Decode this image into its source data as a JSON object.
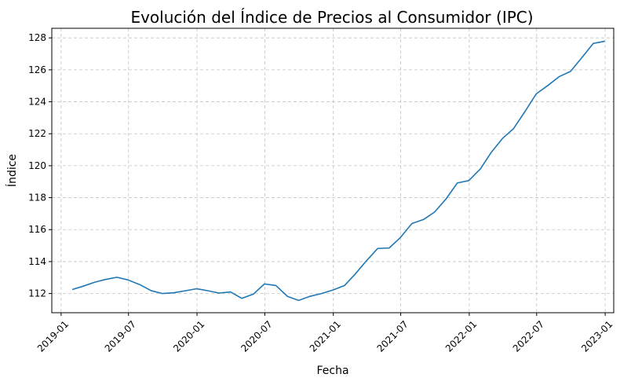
{
  "chart_data": {
    "type": "line",
    "title": "Evolución del Índice de Precios al Consumidor (IPC)",
    "xlabel": "Fecha",
    "ylabel": "Índice",
    "ylim": [
      110.8,
      128.6
    ],
    "yticks": [
      112,
      114,
      116,
      118,
      120,
      122,
      124,
      126,
      128
    ],
    "xlim": [
      "2018-12-07",
      "2023-01-24"
    ],
    "xticks": [
      "2019-01",
      "2019-07",
      "2020-01",
      "2020-07",
      "2021-01",
      "2021-07",
      "2022-01",
      "2022-07",
      "2023-01"
    ],
    "grid": true,
    "color": "#1f77b4",
    "series": [
      {
        "x": [
          "2019-01-31",
          "2019-02-28",
          "2019-03-31",
          "2019-04-30",
          "2019-05-31",
          "2019-06-30",
          "2019-07-31",
          "2019-08-31",
          "2019-09-30",
          "2019-10-31",
          "2019-11-30",
          "2019-12-31",
          "2020-01-31",
          "2020-02-29",
          "2020-03-31",
          "2020-04-30",
          "2020-05-31",
          "2020-06-30",
          "2020-07-31",
          "2020-08-31",
          "2020-09-30",
          "2020-10-31",
          "2020-11-30",
          "2020-12-31",
          "2021-01-31",
          "2021-02-28",
          "2021-03-31",
          "2021-04-30",
          "2021-05-31",
          "2021-06-30",
          "2021-07-31",
          "2021-08-31",
          "2021-09-30",
          "2021-10-31",
          "2021-11-30",
          "2021-12-31",
          "2022-01-31",
          "2022-02-28",
          "2022-03-31",
          "2022-04-30",
          "2022-05-31",
          "2022-06-30",
          "2022-07-31",
          "2022-08-31",
          "2022-09-30",
          "2022-10-31",
          "2022-11-30",
          "2022-12-31"
        ],
        "y": [
          112.25,
          112.45,
          112.7,
          112.88,
          113.02,
          112.85,
          112.56,
          112.18,
          112.0,
          112.05,
          112.17,
          112.3,
          112.17,
          112.03,
          112.1,
          111.7,
          111.96,
          112.6,
          112.5,
          111.82,
          111.57,
          111.83,
          112.0,
          112.22,
          112.5,
          113.2,
          114.05,
          114.82,
          114.85,
          115.5,
          116.38,
          116.63,
          117.1,
          117.93,
          118.92,
          119.07,
          119.8,
          120.8,
          121.7,
          122.32,
          123.4,
          124.5,
          125.02,
          125.58,
          125.9,
          126.78,
          127.65,
          127.79
        ]
      }
    ]
  }
}
